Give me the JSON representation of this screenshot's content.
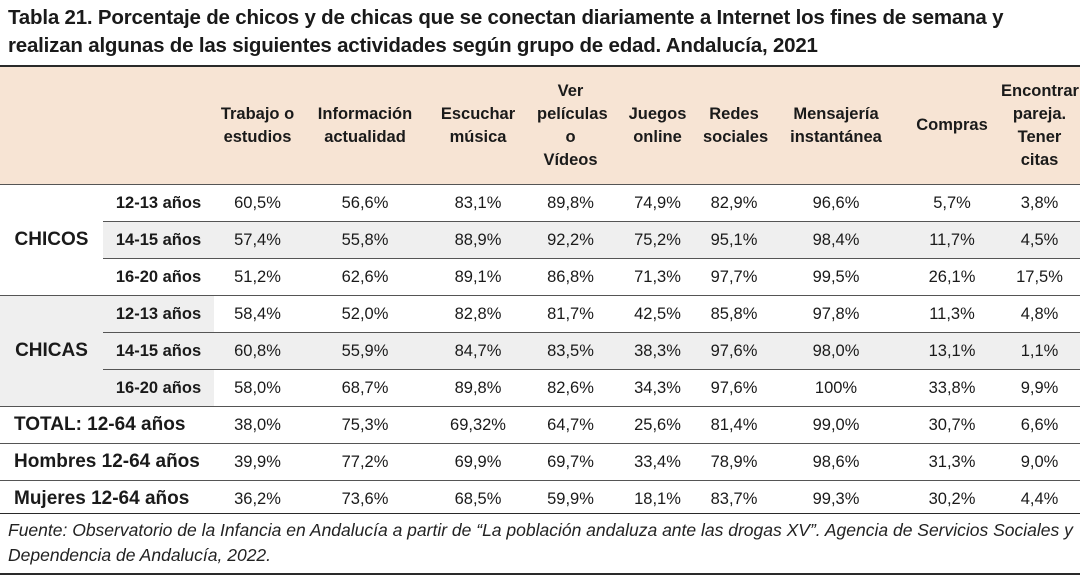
{
  "title": "Tabla 21. Porcentaje de chicos y de chicas que se conectan diariamente a Internet los fines de semana y realizan algunas de las siguientes actividades según grupo de edad. Andalucía, 2021",
  "columns": [
    "Trabajo o estudios",
    "Información actualidad",
    "Escuchar música",
    "Ver películas o Vídeos",
    "Juegos online",
    "Redes sociales",
    "Mensajería instantánea",
    "Compras",
    "Encontrar pareja. Tener citas"
  ],
  "groups": [
    {
      "label": "CHICOS",
      "rows": [
        {
          "age": "12-13 años",
          "values": [
            "60,5%",
            "56,6%",
            "83,1%",
            "89,8%",
            "74,9%",
            "82,9%",
            "96,6%",
            "5,7%",
            "3,8%"
          ]
        },
        {
          "age": "14-15 años",
          "values": [
            "57,4%",
            "55,8%",
            "88,9%",
            "92,2%",
            "75,2%",
            "95,1%",
            "98,4%",
            "11,7%",
            "4,5%"
          ]
        },
        {
          "age": "16-20 años",
          "values": [
            "51,2%",
            "62,6%",
            "89,1%",
            "86,8%",
            "71,3%",
            "97,7%",
            "99,5%",
            "26,1%",
            "17,5%"
          ]
        }
      ]
    },
    {
      "label": "CHICAS",
      "rows": [
        {
          "age": "12-13 años",
          "values": [
            "58,4%",
            "52,0%",
            "82,8%",
            "81,7%",
            "42,5%",
            "85,8%",
            "97,8%",
            "11,3%",
            "4,8%"
          ]
        },
        {
          "age": "14-15 años",
          "values": [
            "60,8%",
            "55,9%",
            "84,7%",
            "83,5%",
            "38,3%",
            "97,6%",
            "98,0%",
            "13,1%",
            "1,1%"
          ]
        },
        {
          "age": "16-20 años",
          "values": [
            "58,0%",
            "68,7%",
            "89,8%",
            "82,6%",
            "34,3%",
            "97,6%",
            "100%",
            "33,8%",
            "9,9%"
          ]
        }
      ]
    }
  ],
  "totals": [
    {
      "label": "TOTAL: 12-64 años",
      "values": [
        "38,0%",
        "75,3%",
        "69,32%",
        "64,7%",
        "25,6%",
        "81,4%",
        "99,0%",
        "30,7%",
        "6,6%"
      ]
    },
    {
      "label": "Hombres 12-64 años",
      "values": [
        "39,9%",
        "77,2%",
        "69,9%",
        "69,7%",
        "33,4%",
        "78,9%",
        "98,6%",
        "31,3%",
        "9,0%"
      ]
    },
    {
      "label": "Mujeres 12-64 años",
      "values": [
        "36,2%",
        "73,6%",
        "68,5%",
        "59,9%",
        "18,1%",
        "83,7%",
        "99,3%",
        "30,2%",
        "4,4%"
      ]
    }
  ],
  "source": "Fuente: Observatorio de la Infancia en Andalucía a partir de “La población andaluza ante las drogas XV”. Agencia de Servicios Sociales y Dependencia de Andalucía, 2022.",
  "colors": {
    "header_bg": "#f7e4d4",
    "band_bg": "#efefef",
    "rule": "#2a2a2a"
  }
}
